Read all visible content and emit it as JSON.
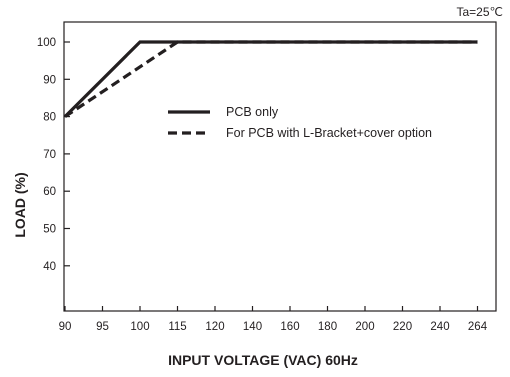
{
  "chart_data": {
    "type": "line",
    "annotation": "Ta=25℃",
    "xlabel": "INPUT VOLTAGE (VAC) 60Hz",
    "ylabel": "LOAD (%)",
    "x_ticks": [
      "90",
      "95",
      "100",
      "115",
      "120",
      "140",
      "160",
      "180",
      "200",
      "220",
      "240",
      "264"
    ],
    "y_ticks": [
      "40",
      "50",
      "60",
      "70",
      "80",
      "90",
      "100"
    ],
    "ylim": [
      30,
      105
    ],
    "grid": false,
    "legend_position": "center",
    "series": [
      {
        "name": "PCB only",
        "style": "solid",
        "color": "#231f20",
        "x": [
          90,
          100,
          264
        ],
        "y": [
          80,
          100,
          100
        ]
      },
      {
        "name": "For PCB with L-Bracket+cover option",
        "style": "dashed",
        "color": "#231f20",
        "x": [
          90,
          115,
          264
        ],
        "y": [
          80,
          100,
          100
        ]
      }
    ]
  }
}
